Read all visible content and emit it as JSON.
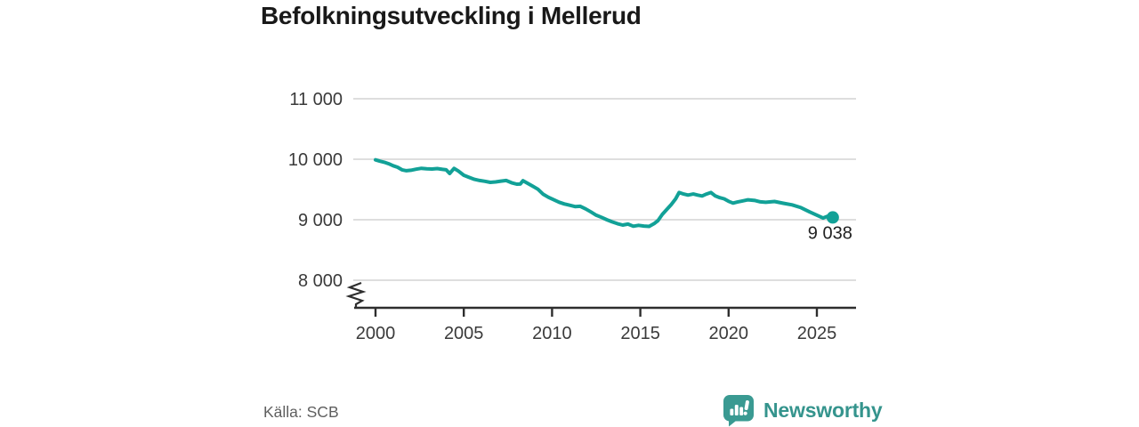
{
  "title": "Befolkningsutveckling i Mellerud",
  "source": "Källa: SCB",
  "branding": {
    "name": "Newsworthy",
    "icon": "bar-chart-speech-bubble-icon"
  },
  "colors": {
    "line": "#12a197",
    "brand": "#35948d",
    "grid": "#dedede",
    "axis": "#2e2e2e",
    "tick_text": "#3a3a3a",
    "title_text": "#191919",
    "source_text": "#5f5f5f",
    "background": "#ffffff"
  },
  "chart_data": {
    "type": "line",
    "title": "Befolkningsutveckling i Mellerud",
    "source": "Källa: SCB",
    "legend": false,
    "grid": "horizontal",
    "y_axis_break": true,
    "ylim_shown": [
      8000,
      11000
    ],
    "xlim": [
      1998.8,
      2027.2
    ],
    "x_ticks": [
      {
        "value": 2000,
        "label": "2000"
      },
      {
        "value": 2005,
        "label": "2005"
      },
      {
        "value": 2010,
        "label": "2010"
      },
      {
        "value": 2015,
        "label": "2015"
      },
      {
        "value": 2020,
        "label": "2020"
      },
      {
        "value": 2025,
        "label": "2025"
      }
    ],
    "y_ticks": [
      {
        "value": 8000,
        "label": "8 000"
      },
      {
        "value": 9000,
        "label": "9 000"
      },
      {
        "value": 10000,
        "label": "10 000"
      },
      {
        "value": 11000,
        "label": "11 000"
      }
    ],
    "end_label": "9 038",
    "end_value": 9038,
    "series": [
      {
        "name": "Befolkning",
        "x": [
          2000,
          2000.25,
          2000.5,
          2000.75,
          2001,
          2001.25,
          2001.5,
          2001.75,
          2002,
          2002.3,
          2002.6,
          2002.9,
          2003.2,
          2003.5,
          2003.8,
          2004,
          2004.2,
          2004.45,
          2004.7,
          2005,
          2005.3,
          2005.6,
          2005.9,
          2006.2,
          2006.5,
          2006.8,
          2007.1,
          2007.4,
          2007.7,
          2008,
          2008.2,
          2008.35,
          2008.6,
          2008.9,
          2009.2,
          2009.5,
          2009.8,
          2010.1,
          2010.4,
          2010.7,
          2011,
          2011.3,
          2011.6,
          2011.9,
          2012.2,
          2012.5,
          2012.8,
          2013.1,
          2013.4,
          2013.7,
          2014,
          2014.3,
          2014.6,
          2014.9,
          2015.2,
          2015.5,
          2015.8,
          2016,
          2016.25,
          2016.5,
          2016.75,
          2017,
          2017.2,
          2017.45,
          2017.7,
          2018,
          2018.25,
          2018.5,
          2018.75,
          2019,
          2019.25,
          2019.5,
          2019.75,
          2020,
          2020.25,
          2020.5,
          2020.75,
          2021.1,
          2021.5,
          2021.8,
          2022.1,
          2022.6,
          2023.1,
          2023.6,
          2024.1,
          2024.6,
          2025.1,
          2025.35,
          2025.6,
          2025.9
        ],
        "y": [
          9990,
          9968,
          9950,
          9925,
          9893,
          9868,
          9825,
          9810,
          9818,
          9835,
          9850,
          9843,
          9838,
          9845,
          9832,
          9825,
          9765,
          9848,
          9805,
          9735,
          9700,
          9668,
          9648,
          9635,
          9618,
          9625,
          9638,
          9648,
          9612,
          9588,
          9590,
          9645,
          9605,
          9555,
          9505,
          9420,
          9370,
          9330,
          9290,
          9260,
          9240,
          9218,
          9222,
          9180,
          9130,
          9075,
          9040,
          9000,
          8965,
          8935,
          8912,
          8928,
          8892,
          8908,
          8895,
          8890,
          8940,
          8985,
          9090,
          9170,
          9250,
          9345,
          9450,
          9425,
          9408,
          9425,
          9408,
          9392,
          9425,
          9450,
          9392,
          9365,
          9345,
          9305,
          9275,
          9292,
          9308,
          9330,
          9318,
          9295,
          9288,
          9302,
          9272,
          9245,
          9200,
          9128,
          9062,
          9028,
          9058,
          9038
        ]
      }
    ]
  }
}
